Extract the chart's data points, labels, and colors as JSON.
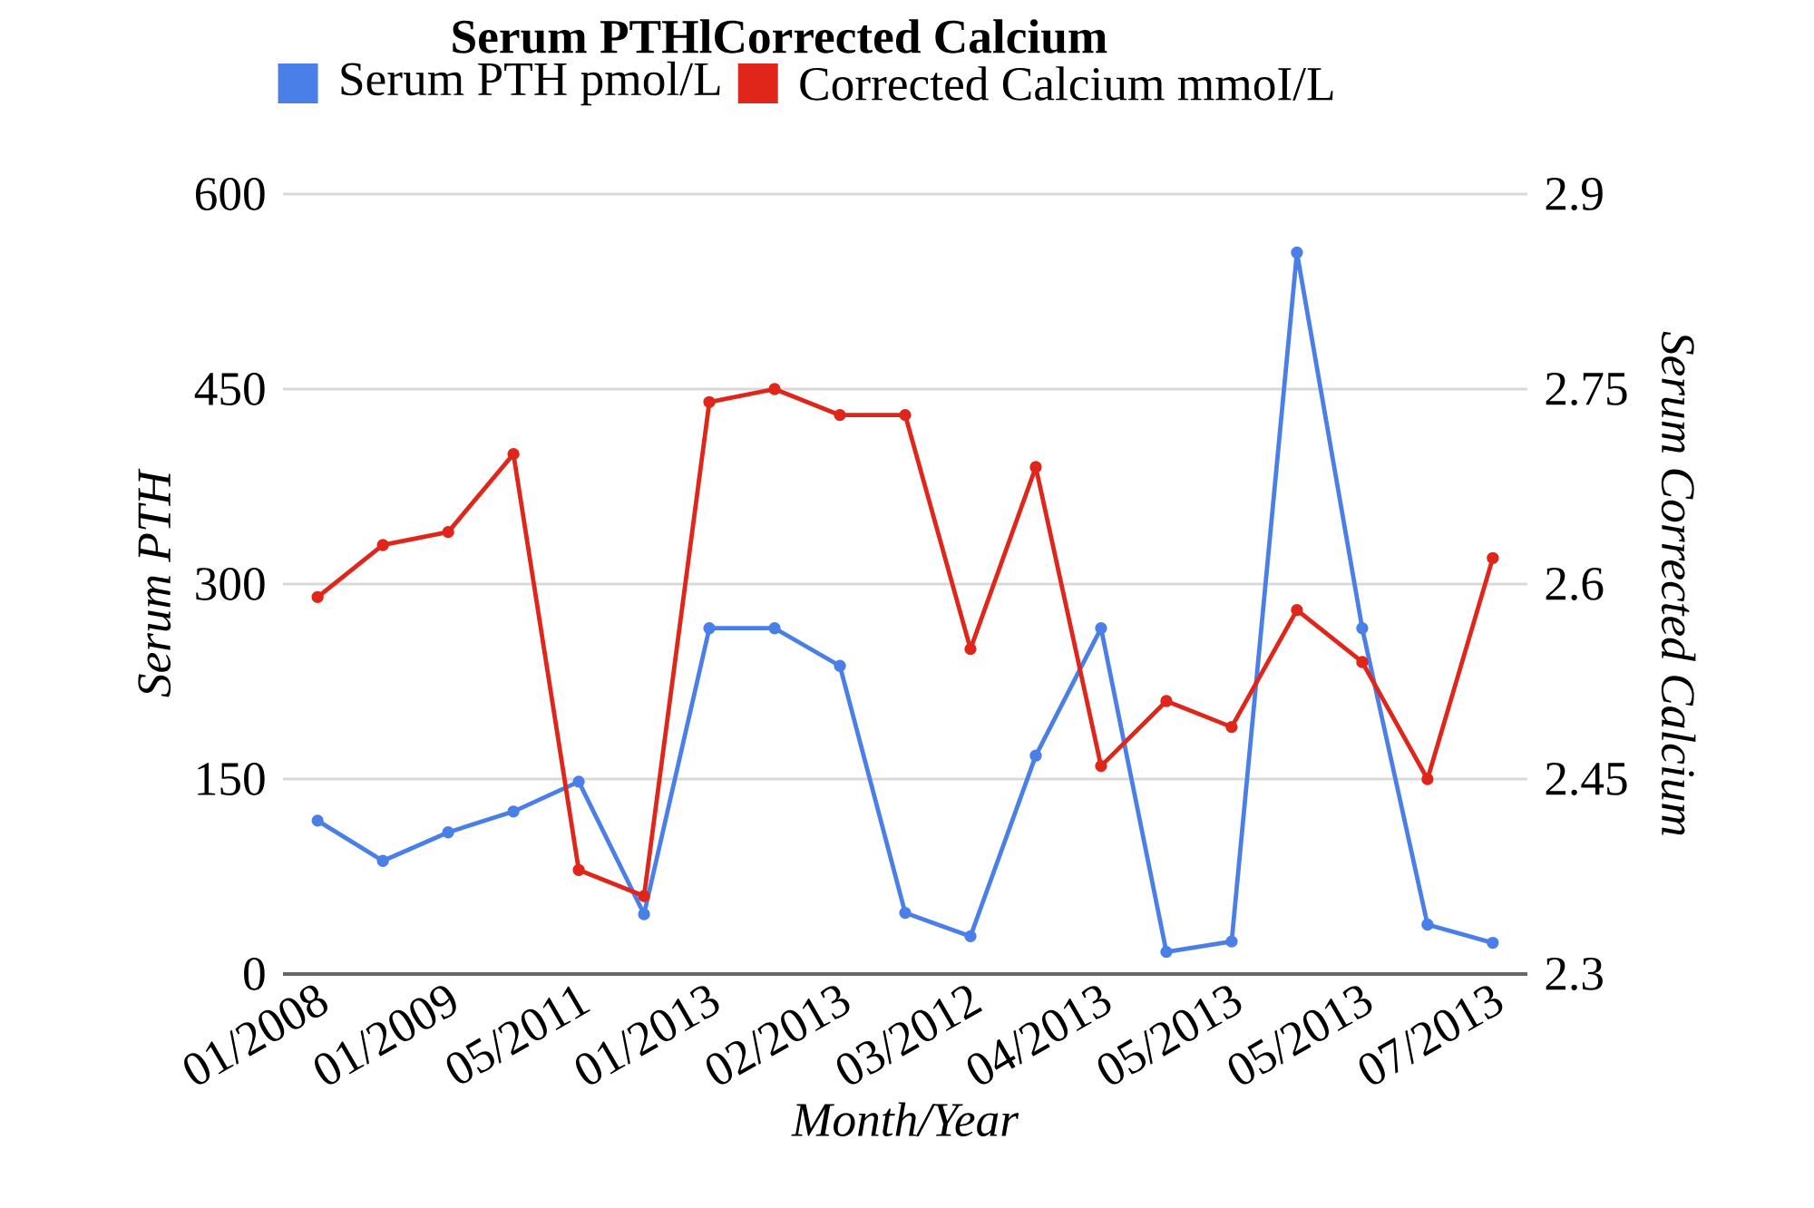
{
  "chart_data": {
    "type": "line",
    "title": "Serum PTHlCorrected Calcium",
    "xlabel": "Month/Year",
    "ylabel": "Serum PTH",
    "y2label": "Serum Corrected Calcium",
    "categories": [
      "01/2008",
      null,
      "01/2009",
      null,
      "05/2011",
      null,
      "01/2013",
      null,
      "02/2013",
      null,
      "03/2012",
      null,
      "04/2013",
      null,
      "05/2013",
      null,
      "05/2013",
      null,
      "07/2013"
    ],
    "series": [
      {
        "name": "Serum PTH pmol/L",
        "color": "#4a7fe8",
        "values": [
          118,
          87,
          109,
          125,
          148,
          46,
          266,
          266,
          237,
          47,
          29,
          168,
          266,
          17,
          25,
          555,
          266,
          38,
          24
        ]
      },
      {
        "name": "Corrected Calcium mmoI/L",
        "color": "#e0261b",
        "axis": "y2",
        "values": [
          2.59,
          2.63,
          2.64,
          2.7,
          2.38,
          2.36,
          2.74,
          2.75,
          2.73,
          2.73,
          2.55,
          2.69,
          2.46,
          2.51,
          2.49,
          2.58,
          2.54,
          2.45,
          2.62
        ]
      }
    ],
    "ylim": [
      0,
      600
    ],
    "yticks": [
      0,
      150,
      300,
      450,
      600
    ],
    "y2lim": [
      2.3,
      2.9
    ],
    "y2ticks": [
      2.3,
      2.45,
      2.6,
      2.75,
      2.9
    ],
    "grid": "y",
    "legend": "top",
    "marker": "circle",
    "line_style": "solid"
  }
}
